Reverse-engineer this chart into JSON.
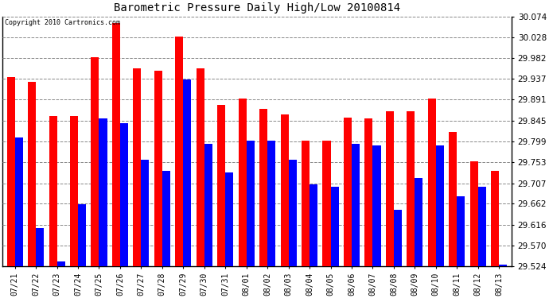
{
  "title": "Barometric Pressure Daily High/Low 20100814",
  "copyright": "Copyright 2010 Cartronics.com",
  "dates": [
    "07/21",
    "07/22",
    "07/23",
    "07/24",
    "07/25",
    "07/26",
    "07/27",
    "07/28",
    "07/29",
    "07/30",
    "07/31",
    "08/01",
    "08/02",
    "08/03",
    "08/04",
    "08/05",
    "08/06",
    "08/07",
    "08/08",
    "08/09",
    "08/10",
    "08/11",
    "08/12",
    "08/13"
  ],
  "highs": [
    29.94,
    29.93,
    29.855,
    29.855,
    29.985,
    30.06,
    29.96,
    29.955,
    30.03,
    29.96,
    29.88,
    29.893,
    29.87,
    29.858,
    29.8,
    29.8,
    29.852,
    29.85,
    29.865,
    29.865,
    29.893,
    29.82,
    29.756,
    29.735
  ],
  "lows": [
    29.808,
    29.608,
    29.535,
    29.66,
    29.85,
    29.84,
    29.758,
    29.735,
    29.935,
    29.793,
    29.73,
    29.8,
    29.8,
    29.758,
    29.705,
    29.7,
    29.793,
    29.79,
    29.648,
    29.718,
    29.79,
    29.678,
    29.7,
    29.528
  ],
  "y_ticks": [
    29.524,
    29.57,
    29.616,
    29.662,
    29.707,
    29.753,
    29.799,
    29.845,
    29.891,
    29.937,
    29.982,
    30.028,
    30.074
  ],
  "ylim": [
    29.524,
    30.074
  ],
  "high_color": "#ff0000",
  "low_color": "#0000ff",
  "bg_color": "#ffffff",
  "grid_color": "#888888",
  "bar_width": 0.38
}
